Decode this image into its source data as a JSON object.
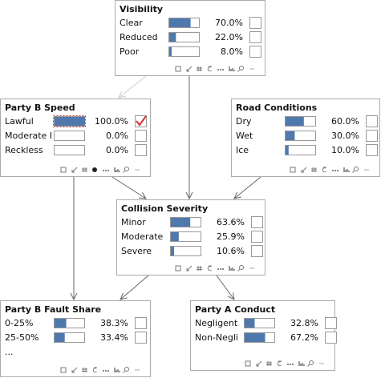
{
  "nodes": [
    {
      "title": "Visibility",
      "states": [
        {
          "label": "Clear",
          "value": 70.0,
          "value_label": "70.0%"
        },
        {
          "label": "Reduced",
          "value": 22.0,
          "value_label": "22.0%"
        },
        {
          "label": "Poor",
          "value": 8.0,
          "value_label": "8.0%"
        }
      ]
    },
    {
      "title": "Party B Speed",
      "states": [
        {
          "label": "Lawful",
          "value": 100.0,
          "value_label": "100.0%",
          "selected": true
        },
        {
          "label": "Moderate I",
          "value": 0.0,
          "value_label": "0.0%"
        },
        {
          "label": "Reckless",
          "value": 0.0,
          "value_label": "0.0%"
        }
      ]
    },
    {
      "title": "Road Conditions",
      "states": [
        {
          "label": "Dry",
          "value": 60.0,
          "value_label": "60.0%"
        },
        {
          "label": "Wet",
          "value": 30.0,
          "value_label": "30.0%"
        },
        {
          "label": "Ice",
          "value": 10.0,
          "value_label": "10.0%"
        }
      ]
    },
    {
      "title": "Collision Severity",
      "states": [
        {
          "label": "Minor",
          "value": 63.6,
          "value_label": "63.6%"
        },
        {
          "label": "Moderate",
          "value": 25.9,
          "value_label": "25.9%"
        },
        {
          "label": "Severe",
          "value": 10.6,
          "value_label": "10.6%"
        }
      ]
    },
    {
      "title": "Party B Fault Share",
      "states": [
        {
          "label": "0-25%",
          "value": 38.3,
          "value_label": "38.3%"
        },
        {
          "label": "25-50%",
          "value": 33.4,
          "value_label": "33.4%"
        },
        {
          "label": "..."
        }
      ]
    },
    {
      "title": "Party A Conduct",
      "states": [
        {
          "label": "Negligent",
          "value": 32.8,
          "value_label": "32.8%"
        },
        {
          "label": "Non-Negli",
          "value": 67.2,
          "value_label": "67.2%"
        }
      ]
    }
  ]
}
